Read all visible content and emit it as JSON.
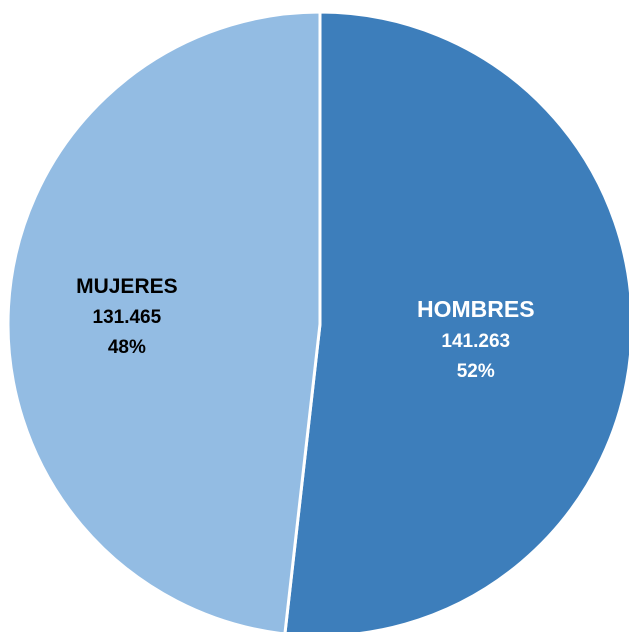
{
  "chart_data": {
    "type": "pie",
    "title": "",
    "slices": [
      {
        "label": "HOMBRES",
        "value_text": "141.263",
        "percent_text": "52%",
        "value": 141263,
        "color": "#3d7ebb",
        "label_color": "#ffffff"
      },
      {
        "label": "MUJERES",
        "value_text": "131.465",
        "percent_text": "48%",
        "value": 131465,
        "color": "#93bce3",
        "label_color": "#000000"
      }
    ],
    "start_angle_deg": 0,
    "direction": "clockwise",
    "slice_border_color": "#ffffff"
  }
}
